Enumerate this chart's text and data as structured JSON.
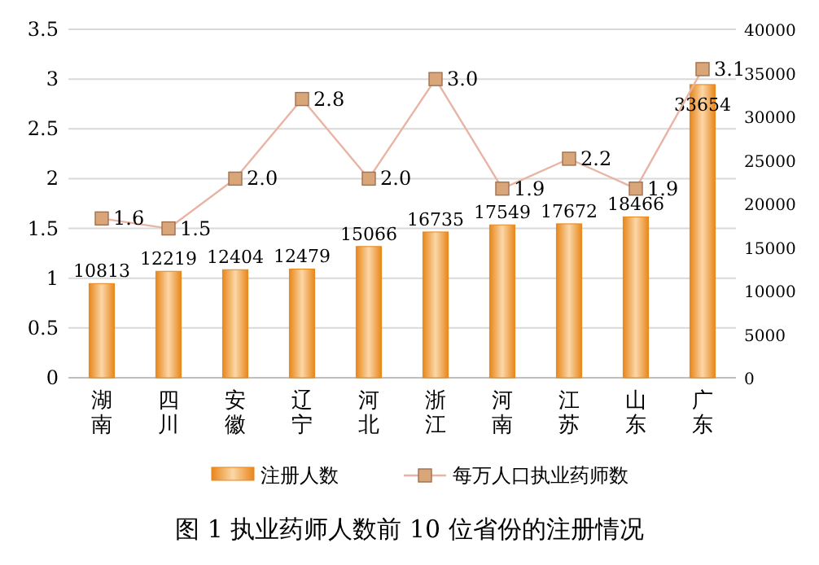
{
  "chart_data": {
    "type": "bar",
    "title": "图 1 执业药师人数前 10 位省份的注册情况",
    "categories": [
      "湖南",
      "四川",
      "安徽",
      "辽宁",
      "河北",
      "浙江",
      "河南",
      "江苏",
      "山东",
      "广东"
    ],
    "series": [
      {
        "name": "注册人数",
        "axis": "y2",
        "color": "#e8861a",
        "values": [
          10813,
          12219,
          12404,
          12479,
          15066,
          16735,
          17549,
          17672,
          18466,
          33654
        ]
      },
      {
        "name": "每万人口执业药师数",
        "type": "line",
        "axis": "y",
        "color": "#e8b4a4",
        "marker": "square",
        "values": [
          1.6,
          1.5,
          2.0,
          2.8,
          2.0,
          3.0,
          1.9,
          2.2,
          1.9,
          3.1
        ],
        "value_labels": [
          "1.6",
          "1.5",
          "2.0",
          "2.8",
          "2.0",
          "3.0",
          "1.9",
          "2.2",
          "1.9",
          "3.1"
        ]
      }
    ],
    "ylim": [
      0,
      3.5
    ],
    "yticks": [
      0,
      0.5,
      1,
      1.5,
      2,
      2.5,
      3,
      3.5
    ],
    "y2lim": [
      0,
      40000
    ],
    "y2ticks": [
      0,
      5000,
      10000,
      15000,
      20000,
      25000,
      30000,
      35000,
      40000
    ],
    "data_labels": true,
    "grid": "y",
    "legend": "bottom"
  }
}
